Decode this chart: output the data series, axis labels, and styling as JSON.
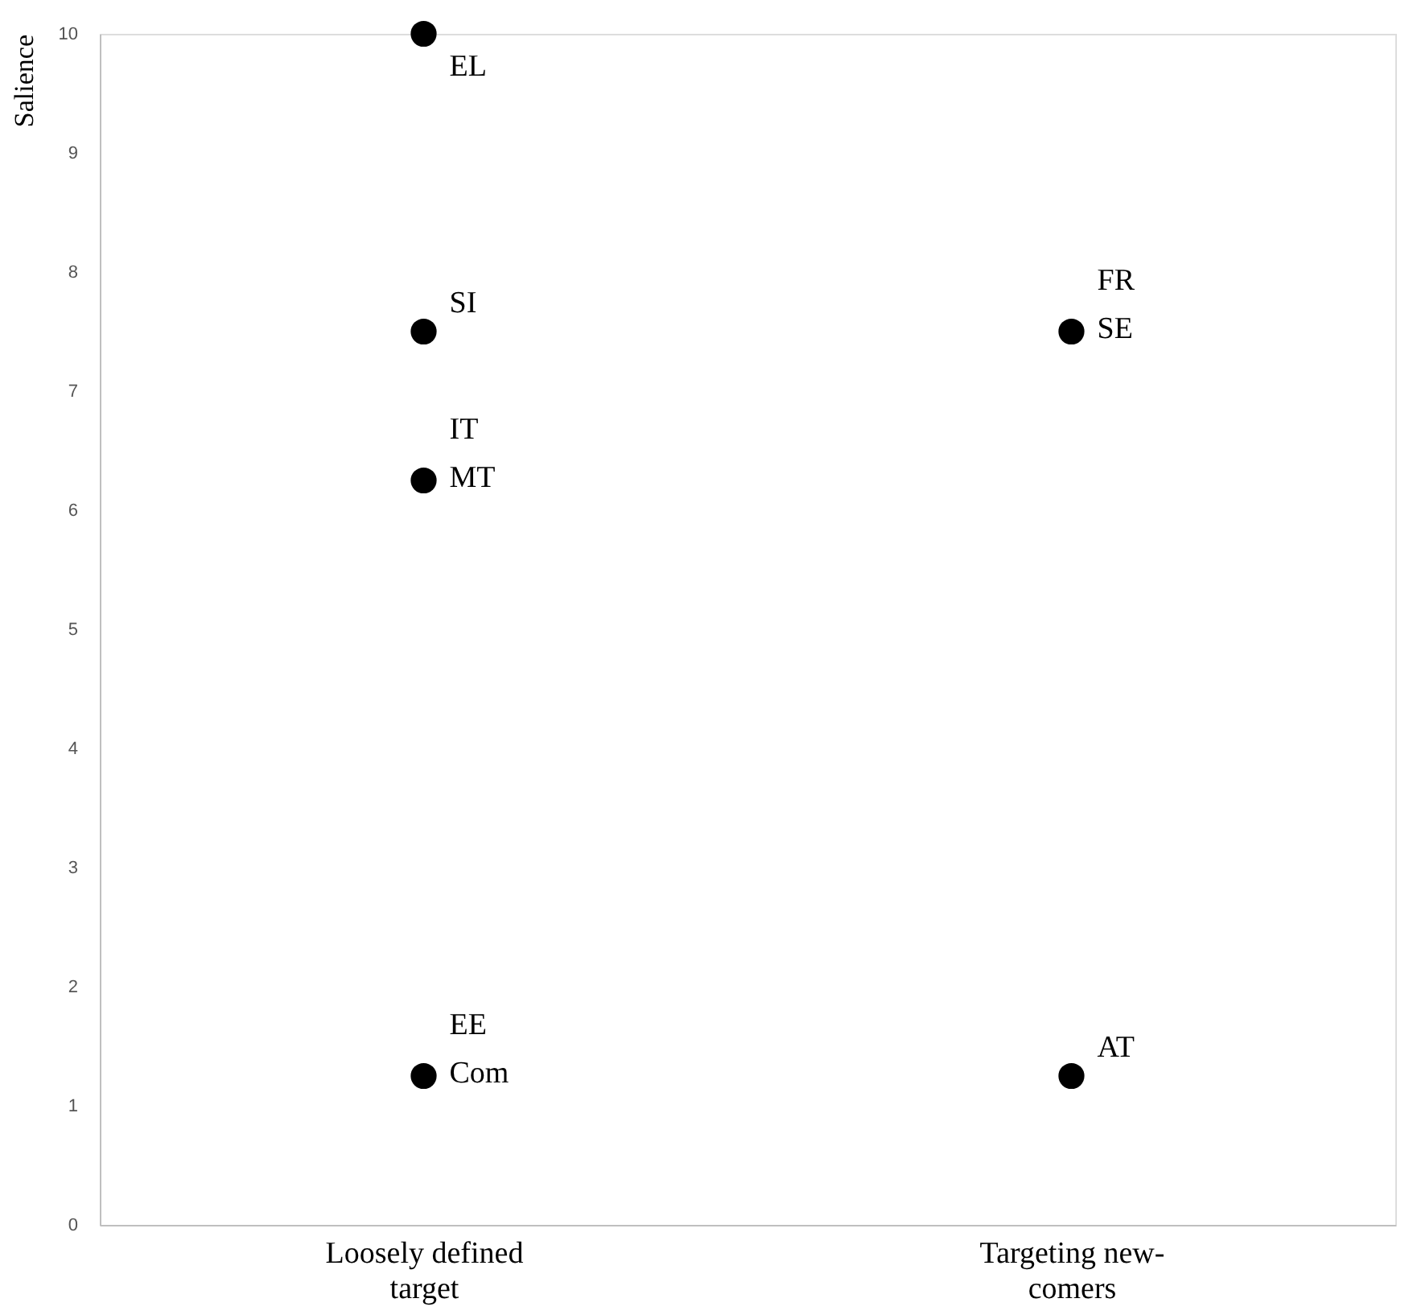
{
  "chart_data": {
    "type": "scatter",
    "ylabel": "Salience",
    "categories": [
      "Loosely defined target",
      "Targeting new-comers"
    ],
    "series": [
      {
        "color": "#000000",
        "x": [
          "Loosely defined target",
          "Loosely defined target",
          "Loosely defined target",
          "Loosely defined target",
          "Targeting new-comers",
          "Targeting new-comers"
        ],
        "values": [
          10,
          7.5,
          6.25,
          1.25,
          7.5,
          1.25
        ]
      }
    ],
    "ylim": [
      0,
      10
    ],
    "yticks": [
      0,
      1,
      2,
      3,
      4,
      5,
      6,
      7,
      8,
      9,
      10
    ],
    "grid": false,
    "legend": false,
    "marker": "circle",
    "annotations": [
      {
        "text": "EL",
        "x": "Loosely defined target",
        "y": 10
      },
      {
        "text": "SI",
        "x": "Loosely defined target",
        "y": 7.5
      },
      {
        "text": "IT",
        "x": "Loosely defined target",
        "y": 6.25
      },
      {
        "text": "MT",
        "x": "Loosely defined target",
        "y": 6.25
      },
      {
        "text": "EE",
        "x": "Loosely defined target",
        "y": 1.25
      },
      {
        "text": "Com",
        "x": "Loosely defined target",
        "y": 1.25
      },
      {
        "text": "FR",
        "x": "Targeting new-comers",
        "y": 7.5
      },
      {
        "text": "SE",
        "x": "Targeting new-comers",
        "y": 7.5
      },
      {
        "text": "AT",
        "x": "Targeting new-comers",
        "y": 1.25
      }
    ]
  }
}
